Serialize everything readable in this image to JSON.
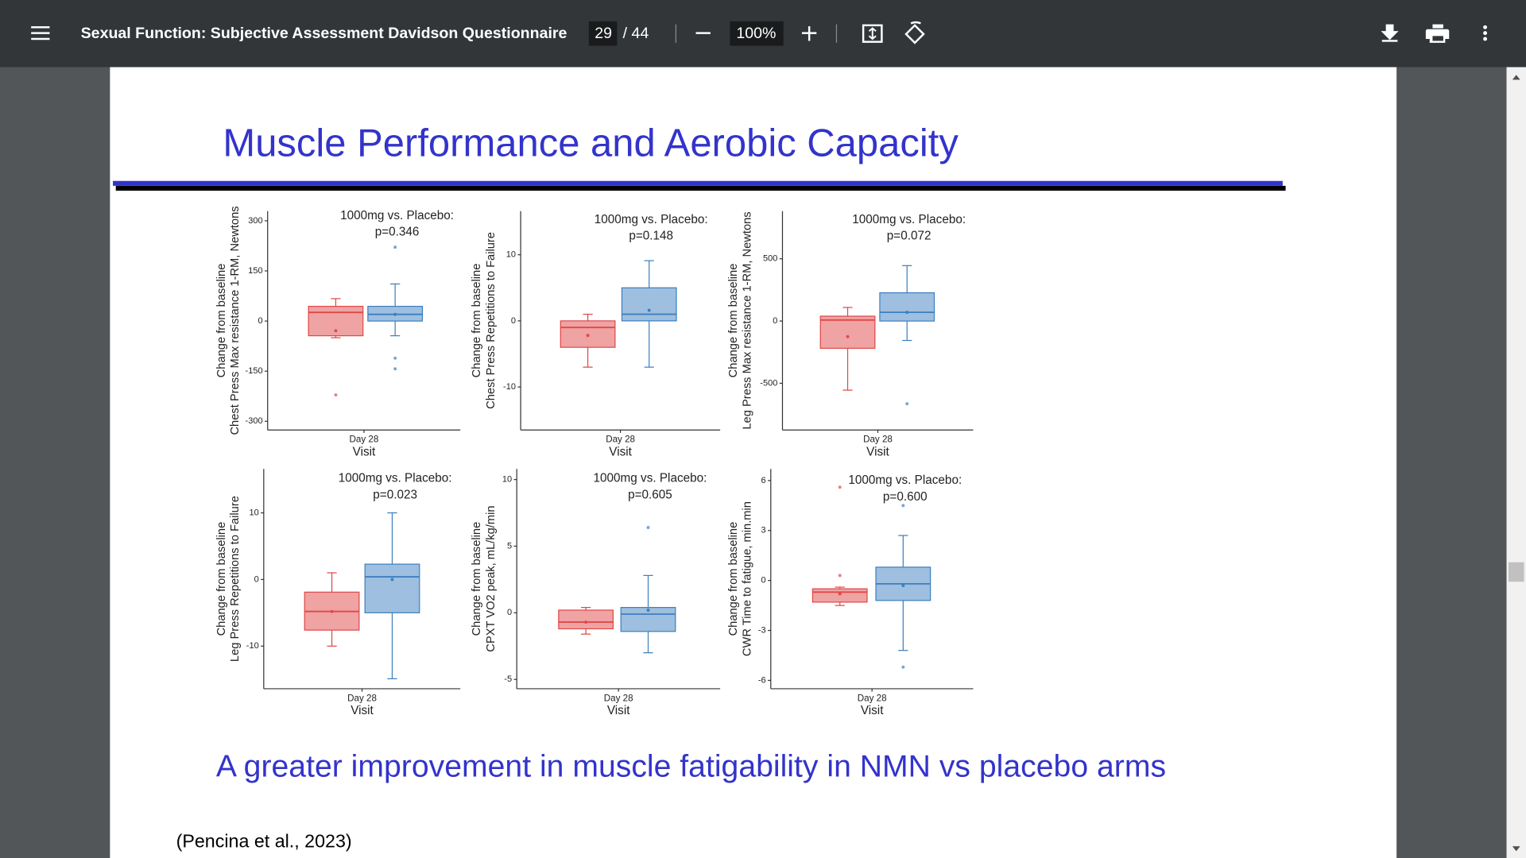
{
  "toolbar": {
    "title": "Sexual Function: Subjective Assessment Davidson Questionnaire",
    "page": "29",
    "page_total": "/ 44",
    "zoom": "100%"
  },
  "slide": {
    "title": "Muscle Performance and Aerobic Capacity",
    "conclusion": "A greater improvement in muscle fatigability in NMN vs placebo arms",
    "citation": "(Pencina et al., 2023)"
  },
  "charts": [
    {
      "type": "box",
      "y_label": [
        "Change from baseline",
        "Chest Press Max resistance 1-RM, Newtons"
      ],
      "annotation": [
        "1000mg vs. Placebo:",
        "p=0.346"
      ],
      "categories": [
        "Day 28"
      ],
      "x_label": "Visit",
      "ylim": [
        -326,
        329
      ],
      "yticks": [
        -300,
        -150,
        0,
        150,
        300
      ],
      "series": [
        {
          "color": "#e04848",
          "min": -50,
          "q1": -44,
          "median": 26,
          "q3": 44,
          "max": 67,
          "mean": -29,
          "outliers": [
            -221
          ]
        },
        {
          "color": "#3d7fbf",
          "min": -44,
          "q1": 0,
          "median": 20,
          "q3": 44,
          "max": 111,
          "mean": 20,
          "outliers": [
            221,
            -111,
            -143
          ]
        }
      ]
    },
    {
      "type": "box",
      "y_label": [
        "Change from baseline",
        "Chest Press Repetitions to Failure"
      ],
      "annotation": [
        "1000mg vs. Placebo:",
        "p=0.148"
      ],
      "categories": [
        "Day 28"
      ],
      "x_label": "Visit",
      "ylim": [
        -16.5,
        16.6
      ],
      "yticks": [
        -10,
        0,
        10
      ],
      "series": [
        {
          "color": "#e04848",
          "min": -7,
          "q1": -4,
          "median": -1,
          "q3": 0,
          "max": 1,
          "mean": -2.2,
          "outliers": []
        },
        {
          "color": "#3d7fbf",
          "min": -7,
          "q1": 0,
          "median": 1,
          "q3": 5,
          "max": 9.1,
          "mean": 1.6,
          "outliers": []
        }
      ]
    },
    {
      "type": "box",
      "y_label": [
        "Change from baseline",
        "Leg Press Max resistance 1-RM, Newtons"
      ],
      "annotation": [
        "1000mg vs. Placebo:",
        "p=0.072"
      ],
      "categories": [
        "Day 28"
      ],
      "x_label": "Visit",
      "ylim": [
        -875,
        883
      ],
      "yticks": [
        -500,
        0,
        500
      ],
      "series": [
        {
          "color": "#e04848",
          "min": -555,
          "q1": -219,
          "median": 8,
          "q3": 39,
          "max": 109,
          "mean": -125,
          "outliers": []
        },
        {
          "color": "#3d7fbf",
          "min": -156,
          "q1": 0,
          "median": 70,
          "q3": 227,
          "max": 445,
          "mean": 70,
          "outliers": [
            -664
          ]
        }
      ]
    },
    {
      "type": "box",
      "y_label": [
        "Change from baseline",
        "Leg Press Repetitions to Failure"
      ],
      "annotation": [
        "1000mg vs. Placebo:",
        "p=0.023"
      ],
      "categories": [
        "Day 28"
      ],
      "x_label": "Visit",
      "ylim": [
        -16.4,
        16.6
      ],
      "yticks": [
        -10,
        0,
        10
      ],
      "series": [
        {
          "color": "#e04848",
          "min": -10,
          "q1": -7.6,
          "median": -4.8,
          "q3": -1.9,
          "max": 1,
          "mean": -4.8,
          "outliers": []
        },
        {
          "color": "#3d7fbf",
          "min": -14.9,
          "q1": -5,
          "median": 0.4,
          "q3": 2.3,
          "max": 10,
          "mean": 0,
          "outliers": []
        }
      ]
    },
    {
      "type": "box",
      "y_label": [
        "Change from baseline",
        "CPXT VO2 peak, mL/kg/min"
      ],
      "annotation": [
        "1000mg vs. Placebo:",
        "p=0.605"
      ],
      "categories": [
        "Day 28"
      ],
      "x_label": "Visit",
      "ylim": [
        -5.7,
        10.8
      ],
      "yticks": [
        -5,
        0,
        5,
        10
      ],
      "series": [
        {
          "color": "#e04848",
          "min": -1.6,
          "q1": -1.2,
          "median": -0.7,
          "q3": 0.2,
          "max": 0.4,
          "mean": -0.7,
          "outliers": []
        },
        {
          "color": "#3d7fbf",
          "min": -3,
          "q1": -1.4,
          "median": -0.1,
          "q3": 0.4,
          "max": 2.8,
          "mean": 0.2,
          "outliers": [
            6.4
          ]
        }
      ]
    },
    {
      "type": "box",
      "y_label": [
        "Change from baseline",
        "CWR Time to fatigue, min.min"
      ],
      "annotation": [
        "1000mg vs. Placebo:",
        "p=0.600"
      ],
      "categories": [
        "Day 28"
      ],
      "x_label": "Visit",
      "ylim": [
        -6.5,
        6.7
      ],
      "yticks": [
        -6,
        -3,
        0,
        3,
        6
      ],
      "series": [
        {
          "color": "#e04848",
          "min": -1.5,
          "q1": -1.3,
          "median": -0.7,
          "q3": -0.5,
          "max": -0.4,
          "mean": -0.8,
          "outliers": [
            5.6,
            0.3
          ]
        },
        {
          "color": "#3d7fbf",
          "min": -4.2,
          "q1": -1.2,
          "median": -0.2,
          "q3": 0.8,
          "max": 2.7,
          "mean": -0.3,
          "outliers": [
            4.5,
            -5.2
          ]
        }
      ]
    }
  ]
}
